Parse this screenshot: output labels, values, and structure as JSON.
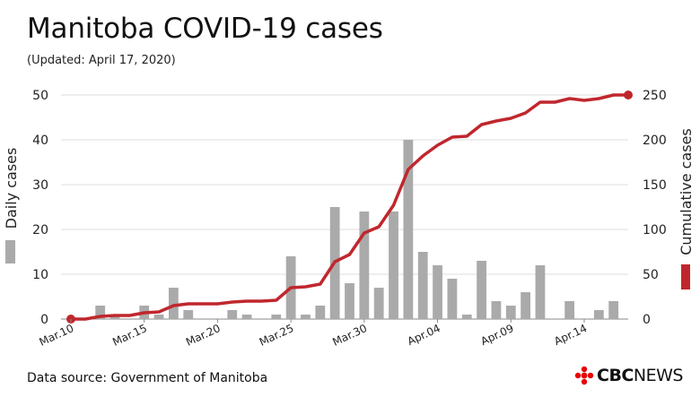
{
  "title": "Manitoba COVID-19 cases",
  "subtitle": "(Updated: April 17, 2020)",
  "source": "Data source: Government of Manitoba",
  "logo": {
    "cbc": "CBC",
    "news": "NEWS"
  },
  "colors": {
    "bar": "#aaaaaa",
    "line": "#c0272d",
    "grid": "#dddddd",
    "logo_red": "#e60505"
  },
  "chart_data": {
    "type": "bar+line",
    "x": [
      "Mar.10",
      "Mar.11",
      "Mar.12",
      "Mar.13",
      "Mar.14",
      "Mar.15",
      "Mar.16",
      "Mar.17",
      "Mar.18",
      "Mar.19",
      "Mar.20",
      "Mar.21",
      "Mar.22",
      "Mar.23",
      "Mar.24",
      "Mar.25",
      "Mar.26",
      "Mar.27",
      "Mar.28",
      "Mar.29",
      "Mar.30",
      "Mar.31",
      "Apr.01",
      "Apr.02",
      "Apr.03",
      "Apr.04",
      "Apr.05",
      "Apr.06",
      "Apr.07",
      "Apr.08",
      "Apr.09",
      "Apr.10",
      "Apr.11",
      "Apr.12",
      "Apr.13",
      "Apr.14",
      "Apr.15",
      "Apr.16",
      "Apr.17"
    ],
    "x_tick_labels": [
      "Mar.10",
      "Mar.15",
      "Mar.20",
      "Mar.25",
      "Mar.30",
      "Apr.04",
      "Apr.09",
      "Apr.14"
    ],
    "series": [
      {
        "name": "Daily cases",
        "axis": "left",
        "kind": "bar",
        "values": [
          0,
          0,
          3,
          1,
          0,
          3,
          1,
          7,
          2,
          0,
          0,
          2,
          1,
          0,
          1,
          14,
          1,
          3,
          25,
          8,
          24,
          7,
          24,
          40,
          15,
          12,
          9,
          1,
          13,
          4,
          3,
          6,
          12,
          0,
          4,
          0,
          2,
          4,
          0
        ]
      },
      {
        "name": "Cumulative cases",
        "axis": "right",
        "kind": "line",
        "values": [
          0,
          0,
          3,
          4,
          4,
          7,
          8,
          15,
          17,
          17,
          17,
          19,
          20,
          20,
          21,
          35,
          36,
          39,
          64,
          72,
          96,
          103,
          127,
          167,
          182,
          194,
          203,
          204,
          217,
          221,
          224,
          230,
          242,
          242,
          246,
          244,
          246,
          250,
          250
        ]
      }
    ],
    "ylabel": "Daily cases",
    "ylim": [
      0,
      50
    ],
    "yticks": [
      0,
      10,
      20,
      30,
      40,
      50
    ],
    "y2label": "Cumulative cases",
    "y2lim": [
      0,
      250
    ],
    "y2ticks": [
      0,
      50,
      100,
      150,
      200,
      250
    ],
    "grid": true
  }
}
